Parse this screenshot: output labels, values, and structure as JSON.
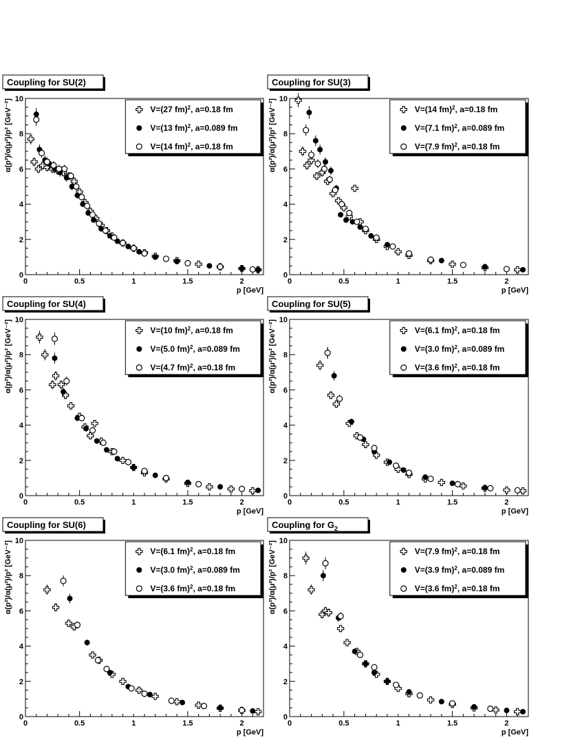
{
  "chart_data": [
    {
      "type": "scatter",
      "title": "Coupling for SU(2)",
      "xlabel": "p [GeV]",
      "ylabel": "α(p²)/α(μ²)/p² [GeV⁻²]",
      "xlim": [
        0,
        2.2
      ],
      "ylim": [
        0,
        10
      ],
      "xticks": [
        "0",
        "0.5",
        "1",
        "1.5",
        "2"
      ],
      "yticks": [
        "0",
        "2",
        "4",
        "6",
        "8",
        "10"
      ],
      "legend_position": "top-right",
      "series": [
        {
          "name": "V=(27 fm)², a=0.18 fm",
          "marker": "cross",
          "x": [
            0.05,
            0.08,
            0.12,
            0.16,
            0.2,
            0.25,
            0.3,
            0.35,
            0.4,
            0.45,
            0.5,
            0.55,
            0.6,
            0.65,
            0.7,
            0.75,
            0.8,
            0.9,
            1.0,
            1.1,
            1.2,
            1.4,
            1.6,
            1.8,
            2.0,
            2.15
          ],
          "y": [
            7.7,
            6.4,
            6.0,
            6.2,
            6.1,
            6.0,
            5.9,
            5.8,
            5.6,
            5.3,
            4.7,
            4.1,
            3.6,
            3.2,
            2.8,
            2.5,
            2.2,
            1.8,
            1.5,
            1.25,
            1.05,
            0.8,
            0.6,
            0.45,
            0.35,
            0.28
          ]
        },
        {
          "name": "V=(13 fm)², a=0.089 fm",
          "marker": "filled",
          "x": [
            0.1,
            0.13,
            0.18,
            0.22,
            0.27,
            0.32,
            0.38,
            0.43,
            0.48,
            0.53,
            0.58,
            0.63,
            0.7,
            0.78,
            0.85,
            0.95,
            1.05,
            1.2,
            1.4,
            1.7,
            2.0,
            2.15
          ],
          "y": [
            9.1,
            7.1,
            6.5,
            6.3,
            6.0,
            5.8,
            5.5,
            5.0,
            4.5,
            4.0,
            3.5,
            3.1,
            2.6,
            2.2,
            1.9,
            1.6,
            1.3,
            1.0,
            0.75,
            0.5,
            0.35,
            0.28
          ]
        },
        {
          "name": "V=(14 fm)², a=0.18 fm",
          "marker": "open",
          "x": [
            0.1,
            0.15,
            0.2,
            0.26,
            0.31,
            0.36,
            0.42,
            0.47,
            0.52,
            0.57,
            0.62,
            0.68,
            0.74,
            0.82,
            0.9,
            1.0,
            1.1,
            1.3,
            1.5,
            1.8,
            2.1
          ],
          "y": [
            8.8,
            6.9,
            6.4,
            6.2,
            6.0,
            6.0,
            5.6,
            5.0,
            4.4,
            3.9,
            3.4,
            2.9,
            2.5,
            2.1,
            1.8,
            1.5,
            1.2,
            0.9,
            0.65,
            0.45,
            0.3
          ]
        }
      ]
    },
    {
      "type": "scatter",
      "title": "Coupling for SU(3)",
      "xlabel": "p [GeV]",
      "ylabel": "α(p²)/α(μ²)/p² [GeV⁻²]",
      "xlim": [
        0,
        2.2
      ],
      "ylim": [
        0,
        10
      ],
      "xticks": [
        "0",
        "0.5",
        "1",
        "1.5",
        "2"
      ],
      "yticks": [
        "0",
        "2",
        "4",
        "6",
        "8",
        "10"
      ],
      "legend_position": "top-right",
      "series": [
        {
          "name": "V=(14 fm)², a=0.18 fm",
          "marker": "cross",
          "x": [
            0.08,
            0.12,
            0.16,
            0.2,
            0.25,
            0.3,
            0.35,
            0.4,
            0.45,
            0.5,
            0.55,
            0.6,
            0.65,
            0.7,
            0.8,
            0.9,
            1.0,
            1.1,
            1.3,
            1.5,
            1.8,
            2.1
          ],
          "y": [
            9.9,
            7.0,
            6.2,
            6.5,
            5.6,
            5.8,
            5.3,
            4.6,
            4.2,
            3.8,
            3.3,
            4.9,
            3.0,
            2.5,
            2.0,
            1.6,
            1.3,
            1.1,
            0.8,
            0.6,
            0.4,
            0.28
          ]
        },
        {
          "name": "V=(7.1 fm)², a=0.089 fm",
          "marker": "filled",
          "x": [
            0.18,
            0.24,
            0.28,
            0.33,
            0.38,
            0.43,
            0.47,
            0.52,
            0.58,
            0.65,
            0.75,
            0.9,
            1.1,
            1.4,
            1.8,
            2.15
          ],
          "y": [
            9.2,
            7.6,
            7.1,
            6.4,
            5.9,
            4.9,
            3.4,
            3.1,
            3.0,
            2.7,
            2.2,
            1.7,
            1.2,
            0.8,
            0.45,
            0.28
          ]
        },
        {
          "name": "V=(7.9 fm)², a=0.18 fm",
          "marker": "open",
          "x": [
            0.15,
            0.2,
            0.26,
            0.32,
            0.37,
            0.42,
            0.48,
            0.55,
            0.62,
            0.7,
            0.8,
            0.95,
            1.1,
            1.3,
            1.6,
            2.0
          ],
          "y": [
            8.2,
            6.8,
            6.3,
            6.0,
            5.4,
            4.8,
            4.0,
            3.5,
            3.0,
            2.6,
            2.1,
            1.6,
            1.2,
            0.85,
            0.55,
            0.32
          ]
        }
      ]
    },
    {
      "type": "scatter",
      "title": "Coupling for SU(4)",
      "xlabel": "p [GeV]",
      "ylabel": "α(p²)/α(μ²)/p² [GeV⁻²]",
      "xlim": [
        0,
        2.2
      ],
      "ylim": [
        0,
        10
      ],
      "xticks": [
        "0",
        "0.5",
        "1",
        "1.5",
        "2"
      ],
      "yticks": [
        "0",
        "2",
        "4",
        "6",
        "8",
        "10"
      ],
      "legend_position": "top-right",
      "series": [
        {
          "name": "V=(10 fm)², a=0.18 fm",
          "marker": "cross",
          "x": [
            0.13,
            0.18,
            0.25,
            0.28,
            0.33,
            0.37,
            0.42,
            0.5,
            0.55,
            0.6,
            0.64,
            0.7,
            0.8,
            0.9,
            1.0,
            1.1,
            1.3,
            1.5,
            1.7,
            1.9,
            2.1
          ],
          "y": [
            9.0,
            8.0,
            6.3,
            6.8,
            6.3,
            5.7,
            5.1,
            4.5,
            3.9,
            3.4,
            4.1,
            3.1,
            2.5,
            2.0,
            1.6,
            1.3,
            0.95,
            0.7,
            0.5,
            0.38,
            0.28
          ]
        },
        {
          "name": "V=(5.0 fm)², a=0.089 fm",
          "marker": "filled",
          "x": [
            0.27,
            0.35,
            0.48,
            0.56,
            0.66,
            0.75,
            0.85,
            1.0,
            1.2,
            1.5,
            1.8,
            2.15
          ],
          "y": [
            7.8,
            5.9,
            4.4,
            3.8,
            3.1,
            2.6,
            2.1,
            1.6,
            1.15,
            0.75,
            0.5,
            0.3
          ]
        },
        {
          "name": "V=(4.7 fm)², a=0.18 fm",
          "marker": "open",
          "x": [
            0.27,
            0.38,
            0.52,
            0.62,
            0.72,
            0.82,
            0.95,
            1.1,
            1.3,
            1.6,
            2.0
          ],
          "y": [
            8.9,
            6.5,
            4.4,
            3.7,
            3.0,
            2.5,
            1.9,
            1.4,
            1.0,
            0.65,
            0.38
          ]
        }
      ]
    },
    {
      "type": "scatter",
      "title": "Coupling for SU(5)",
      "xlabel": "p [GeV]",
      "ylabel": "α(p²)/α(μ²)/p² [GeV⁻²]",
      "xlim": [
        0,
        2.2
      ],
      "ylim": [
        0,
        10
      ],
      "xticks": [
        "0",
        "0.5",
        "1",
        "1.5",
        "2"
      ],
      "yticks": [
        "0",
        "2",
        "4",
        "6",
        "8",
        "10"
      ],
      "legend_position": "top-right",
      "series": [
        {
          "name": "V=(6.1 fm)², a=0.18 fm",
          "marker": "cross",
          "x": [
            0.28,
            0.38,
            0.43,
            0.55,
            0.62,
            0.7,
            0.8,
            0.9,
            1.0,
            1.1,
            1.25,
            1.4,
            1.6,
            1.8,
            2.0,
            2.15
          ],
          "y": [
            7.4,
            5.7,
            5.2,
            4.1,
            3.4,
            2.9,
            2.3,
            1.9,
            1.5,
            1.2,
            0.95,
            0.75,
            0.55,
            0.42,
            0.32,
            0.27
          ]
        },
        {
          "name": "V=(3.0 fm)², a=0.089 fm",
          "marker": "filled",
          "x": [
            0.35,
            0.41,
            0.57,
            0.68,
            0.78,
            0.92,
            1.05,
            1.25,
            1.5,
            1.8,
            2.1
          ],
          "y": [
            8.1,
            6.8,
            4.2,
            3.2,
            2.5,
            1.9,
            1.45,
            1.05,
            0.7,
            0.45,
            0.3
          ]
        },
        {
          "name": "V=(3.6 fm)², a=0.18 fm",
          "marker": "open",
          "x": [
            0.35,
            0.46,
            0.65,
            0.78,
            0.98,
            1.1,
            1.3,
            1.55,
            1.85,
            2.1
          ],
          "y": [
            8.1,
            5.5,
            3.3,
            2.7,
            1.7,
            1.3,
            0.95,
            0.65,
            0.42,
            0.3
          ]
        }
      ]
    },
    {
      "type": "scatter",
      "title": "Coupling for SU(6)",
      "xlabel": "p [GeV]",
      "ylabel": "α(p²)/α(μ²)/p² [GeV⁻²]",
      "xlim": [
        0,
        2.2
      ],
      "ylim": [
        0,
        10
      ],
      "xticks": [
        "0",
        "0.5",
        "1",
        "1.5",
        "2"
      ],
      "yticks": [
        "0",
        "2",
        "4",
        "6",
        "8",
        "10"
      ],
      "legend_position": "top-right",
      "series": [
        {
          "name": "V=(6.1 fm)², a=0.18 fm",
          "marker": "cross",
          "x": [
            0.2,
            0.28,
            0.4,
            0.45,
            0.62,
            0.68,
            0.8,
            0.9,
            1.05,
            1.2,
            1.4,
            1.6,
            1.8,
            2.0,
            2.15
          ],
          "y": [
            7.2,
            6.2,
            5.3,
            5.1,
            3.5,
            3.2,
            2.4,
            2.0,
            1.5,
            1.15,
            0.85,
            0.65,
            0.48,
            0.36,
            0.28
          ]
        },
        {
          "name": "V=(3.0 fm)², a=0.089 fm",
          "marker": "filled",
          "x": [
            0.41,
            0.57,
            0.78,
            0.95,
            1.15,
            1.45,
            1.8,
            2.1
          ],
          "y": [
            6.7,
            4.2,
            2.5,
            1.7,
            1.25,
            0.8,
            0.5,
            0.32
          ]
        },
        {
          "name": "V=(3.6 fm)², a=0.18 fm",
          "marker": "open",
          "x": [
            0.35,
            0.48,
            0.67,
            0.75,
            0.98,
            1.1,
            1.35,
            1.65,
            2.0
          ],
          "y": [
            7.7,
            5.2,
            3.2,
            2.7,
            1.6,
            1.3,
            0.9,
            0.6,
            0.36
          ]
        }
      ]
    },
    {
      "type": "scatter",
      "title": "Coupling for G",
      "title_subscript": "2",
      "xlabel": "p [GeV]",
      "ylabel": "α(p²)/α(μ²)/p² [GeV⁻²]",
      "xlim": [
        0,
        2.2
      ],
      "ylim": [
        0,
        10
      ],
      "xticks": [
        "0",
        "0.5",
        "1",
        "1.5",
        "2"
      ],
      "yticks": [
        "0",
        "2",
        "4",
        "6",
        "8",
        "10"
      ],
      "legend_position": "top-right",
      "series": [
        {
          "name": "V=(7.9 fm)², a=0.18 fm",
          "marker": "cross",
          "x": [
            0.15,
            0.2,
            0.3,
            0.33,
            0.36,
            0.47,
            0.53,
            0.62,
            0.7,
            0.8,
            0.9,
            1.0,
            1.1,
            1.3,
            1.5,
            1.7,
            1.9,
            2.1
          ],
          "y": [
            9.0,
            7.2,
            5.8,
            6.0,
            5.9,
            5.0,
            4.2,
            3.7,
            3.0,
            2.4,
            2.0,
            1.6,
            1.3,
            0.95,
            0.7,
            0.5,
            0.38,
            0.28
          ]
        },
        {
          "name": "V=(3.9 fm)², a=0.089 fm",
          "marker": "filled",
          "x": [
            0.31,
            0.45,
            0.6,
            0.7,
            0.78,
            0.9,
            1.1,
            1.4,
            1.7,
            2.0,
            2.15
          ],
          "y": [
            8.0,
            5.6,
            3.7,
            3.0,
            2.5,
            2.0,
            1.4,
            0.85,
            0.55,
            0.35,
            0.28
          ]
        },
        {
          "name": "V=(3.6 fm)², a=0.18 fm",
          "marker": "open",
          "x": [
            0.33,
            0.47,
            0.65,
            0.78,
            0.98,
            1.2,
            1.5,
            1.85
          ],
          "y": [
            8.7,
            5.7,
            3.5,
            2.8,
            1.8,
            1.2,
            0.75,
            0.45
          ]
        }
      ]
    }
  ]
}
